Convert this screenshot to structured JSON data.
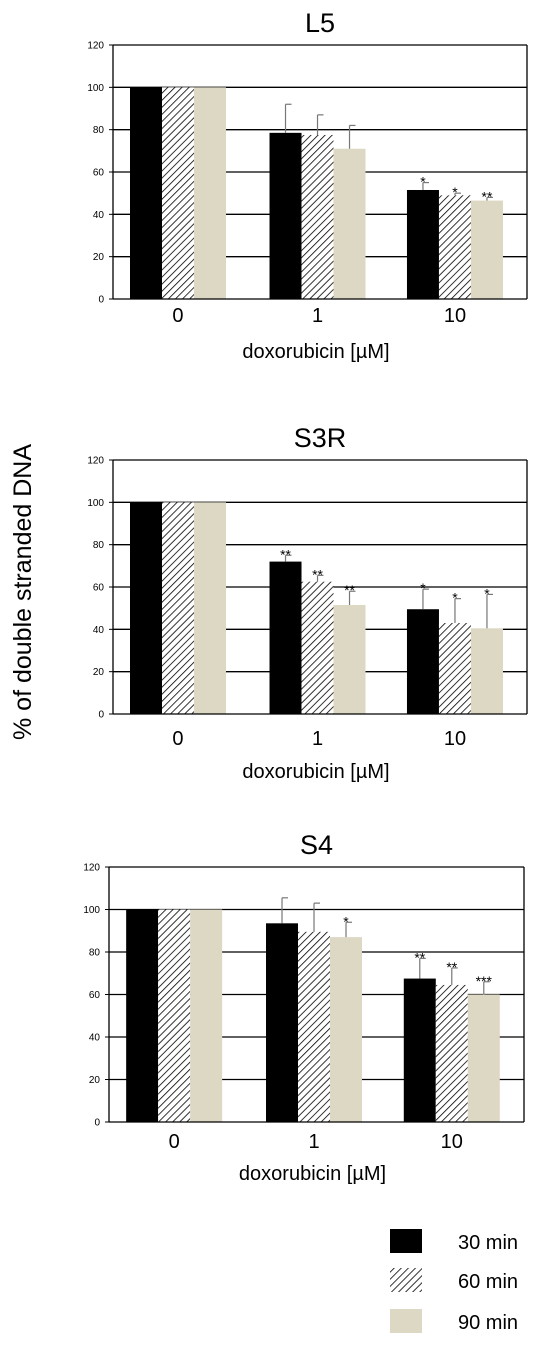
{
  "ylabel": "% of double stranded DNA",
  "legend": [
    {
      "label": "30 min",
      "fill": "black"
    },
    {
      "label": "60 min",
      "fill": "hatch"
    },
    {
      "label": "90 min",
      "fill": "beige"
    }
  ],
  "colors": {
    "30 min": "#000000",
    "60 min": "hatch",
    "90 min": "#ddd8c4"
  },
  "chart_data": [
    {
      "type": "bar",
      "title": "L5",
      "xlabel": "doxorubicin [µM]",
      "ylabel": "% of double stranded DNA",
      "categories": [
        "0",
        "1",
        "10"
      ],
      "yticks": [
        "0",
        "20",
        "40",
        "60",
        "80",
        "100",
        "120"
      ],
      "ylim": [
        0,
        120
      ],
      "grid": true,
      "series": [
        {
          "name": "30 min",
          "values": [
            100,
            78.5,
            51.5
          ],
          "errors": [
            0,
            13.5,
            3.5
          ],
          "significance": [
            "",
            "",
            "*"
          ]
        },
        {
          "name": "60 min",
          "values": [
            100,
            77.5,
            49
          ],
          "errors": [
            0,
            9.5,
            1
          ],
          "significance": [
            "",
            "",
            "*"
          ]
        },
        {
          "name": "90 min",
          "values": [
            100,
            71,
            46.5
          ],
          "errors": [
            0,
            11,
            1.5
          ],
          "significance": [
            "",
            "",
            "**"
          ]
        }
      ]
    },
    {
      "type": "bar",
      "title": "S3R",
      "xlabel": "doxorubicin [µM]",
      "ylabel": "% of double stranded DNA",
      "categories": [
        "0",
        "1",
        "10"
      ],
      "yticks": [
        "0",
        "20",
        "40",
        "60",
        "80",
        "100",
        "120"
      ],
      "ylim": [
        0,
        120
      ],
      "grid": true,
      "series": [
        {
          "name": "30 min",
          "values": [
            100,
            72,
            49.5
          ],
          "errors": [
            0,
            3,
            9.5
          ],
          "significance": [
            "",
            "**",
            "*"
          ]
        },
        {
          "name": "60 min",
          "values": [
            100,
            62.5,
            43
          ],
          "errors": [
            0,
            3,
            11.5
          ],
          "significance": [
            "",
            "**",
            "*"
          ]
        },
        {
          "name": "90 min",
          "values": [
            100,
            51.5,
            40.5
          ],
          "errors": [
            0,
            6.5,
            16
          ],
          "significance": [
            "",
            "**",
            "*"
          ]
        }
      ]
    },
    {
      "type": "bar",
      "title": "S4",
      "xlabel": "doxorubicin [µM]",
      "ylabel": "% of double stranded DNA",
      "categories": [
        "0",
        "1",
        "10"
      ],
      "yticks": [
        "0",
        "20",
        "40",
        "60",
        "80",
        "100",
        "120"
      ],
      "ylim": [
        0,
        120
      ],
      "grid": true,
      "series": [
        {
          "name": "30 min",
          "values": [
            100,
            93.5,
            67.5
          ],
          "errors": [
            0,
            12,
            9.5
          ],
          "significance": [
            "",
            "",
            "**"
          ]
        },
        {
          "name": "60 min",
          "values": [
            100,
            89.5,
            64.5
          ],
          "errors": [
            0,
            13.5,
            8
          ],
          "significance": [
            "",
            "",
            "**"
          ]
        },
        {
          "name": "90 min",
          "values": [
            100,
            87,
            60
          ],
          "errors": [
            0,
            7,
            6
          ],
          "significance": [
            "",
            "*",
            "***"
          ]
        }
      ]
    }
  ]
}
